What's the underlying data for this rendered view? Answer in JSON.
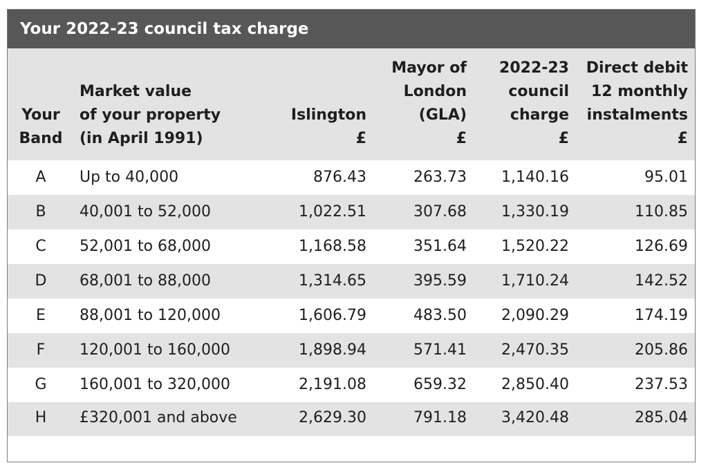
{
  "title": "Your 2022-23 council tax charge",
  "headers": {
    "band": [
      "Your",
      "Band"
    ],
    "market": [
      "Market value",
      "of your property",
      "(in April 1991)"
    ],
    "islington": [
      "Islington",
      "£"
    ],
    "gla": [
      "Mayor of",
      "London",
      "(GLA)",
      "£"
    ],
    "charge": [
      "2022-23",
      "council",
      "charge",
      "£"
    ],
    "direct_debit": [
      "Direct debit",
      "12 monthly",
      "instalments",
      "£"
    ]
  },
  "rows": [
    {
      "band": "A",
      "market": "Up to 40,000",
      "islington": "876.43",
      "gla": "263.73",
      "charge": "1,140.16",
      "dd": "95.01"
    },
    {
      "band": "B",
      "market": "40,001 to 52,000",
      "islington": "1,022.51",
      "gla": "307.68",
      "charge": "1,330.19",
      "dd": "110.85"
    },
    {
      "band": "C",
      "market": "52,001 to 68,000",
      "islington": "1,168.58",
      "gla": "351.64",
      "charge": "1,520.22",
      "dd": "126.69"
    },
    {
      "band": "D",
      "market": "68,001 to 88,000",
      "islington": "1,314.65",
      "gla": "395.59",
      "charge": "1,710.24",
      "dd": "142.52"
    },
    {
      "band": "E",
      "market": "88,001 to 120,000",
      "islington": "1,606.79",
      "gla": "483.50",
      "charge": "2,090.29",
      "dd": "174.19"
    },
    {
      "band": "F",
      "market": "120,001 to 160,000",
      "islington": "1,898.94",
      "gla": "571.41",
      "charge": "2,470.35",
      "dd": "205.86"
    },
    {
      "band": "G",
      "market": "160,001 to 320,000",
      "islington": "2,191.08",
      "gla": "659.32",
      "charge": "2,850.40",
      "dd": "237.53"
    },
    {
      "band": "H",
      "market": "£320,001 and above",
      "islington": "2,629.30",
      "gla": "791.18",
      "charge": "3,420.48",
      "dd": "285.04"
    }
  ]
}
